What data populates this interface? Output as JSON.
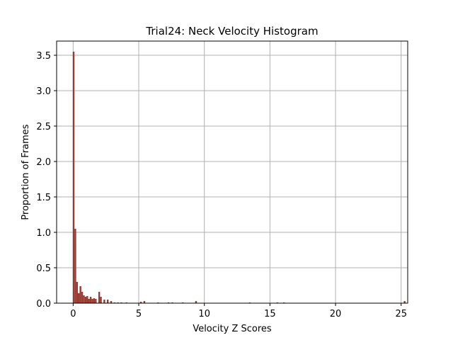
{
  "chart_data": {
    "type": "bar",
    "title": "Trial24: Neck Velocity Histogram",
    "xlabel": "Velocity Z Scores",
    "ylabel": "Proportion of Frames",
    "xlim": [
      -1.26,
      25.5
    ],
    "ylim": [
      0,
      3.7
    ],
    "xticks": [
      0,
      5,
      10,
      15,
      20,
      25
    ],
    "yticks": [
      0.0,
      0.5,
      1.0,
      1.5,
      2.0,
      2.5,
      3.0,
      3.5
    ],
    "xtick_labels": [
      "0",
      "5",
      "10",
      "15",
      "20",
      "25"
    ],
    "ytick_labels": [
      "0.0",
      "0.5",
      "1.0",
      "1.5",
      "2.0",
      "2.5",
      "3.0",
      "3.5"
    ],
    "grid": true,
    "bar_color": "#9a3b32",
    "bin_width": 0.13,
    "bins": [
      {
        "x": -0.03,
        "value": 3.55
      },
      {
        "x": 0.1,
        "value": 1.05
      },
      {
        "x": 0.23,
        "value": 0.3
      },
      {
        "x": 0.36,
        "value": 0.14
      },
      {
        "x": 0.49,
        "value": 0.24
      },
      {
        "x": 0.62,
        "value": 0.16
      },
      {
        "x": 0.75,
        "value": 0.11
      },
      {
        "x": 0.88,
        "value": 0.09
      },
      {
        "x": 1.01,
        "value": 0.1
      },
      {
        "x": 1.14,
        "value": 0.06
      },
      {
        "x": 1.27,
        "value": 0.09
      },
      {
        "x": 1.4,
        "value": 0.06
      },
      {
        "x": 1.53,
        "value": 0.07
      },
      {
        "x": 1.66,
        "value": 0.06
      },
      {
        "x": 1.92,
        "value": 0.16
      },
      {
        "x": 2.05,
        "value": 0.09
      },
      {
        "x": 2.31,
        "value": 0.05
      },
      {
        "x": 2.57,
        "value": 0.05
      },
      {
        "x": 2.83,
        "value": 0.03
      },
      {
        "x": 3.09,
        "value": 0.01
      },
      {
        "x": 3.35,
        "value": 0.01
      },
      {
        "x": 3.61,
        "value": 0.01
      },
      {
        "x": 4.0,
        "value": 0.01
      },
      {
        "x": 5.1,
        "value": 0.02
      },
      {
        "x": 5.36,
        "value": 0.03
      },
      {
        "x": 6.4,
        "value": 0.01
      },
      {
        "x": 7.2,
        "value": 0.01
      },
      {
        "x": 7.5,
        "value": 0.01
      },
      {
        "x": 8.3,
        "value": 0.01
      },
      {
        "x": 9.3,
        "value": 0.03
      },
      {
        "x": 13.4,
        "value": 0.01
      },
      {
        "x": 15.5,
        "value": 0.01
      },
      {
        "x": 16.0,
        "value": 0.01
      },
      {
        "x": 25.2,
        "value": 0.03
      }
    ]
  }
}
